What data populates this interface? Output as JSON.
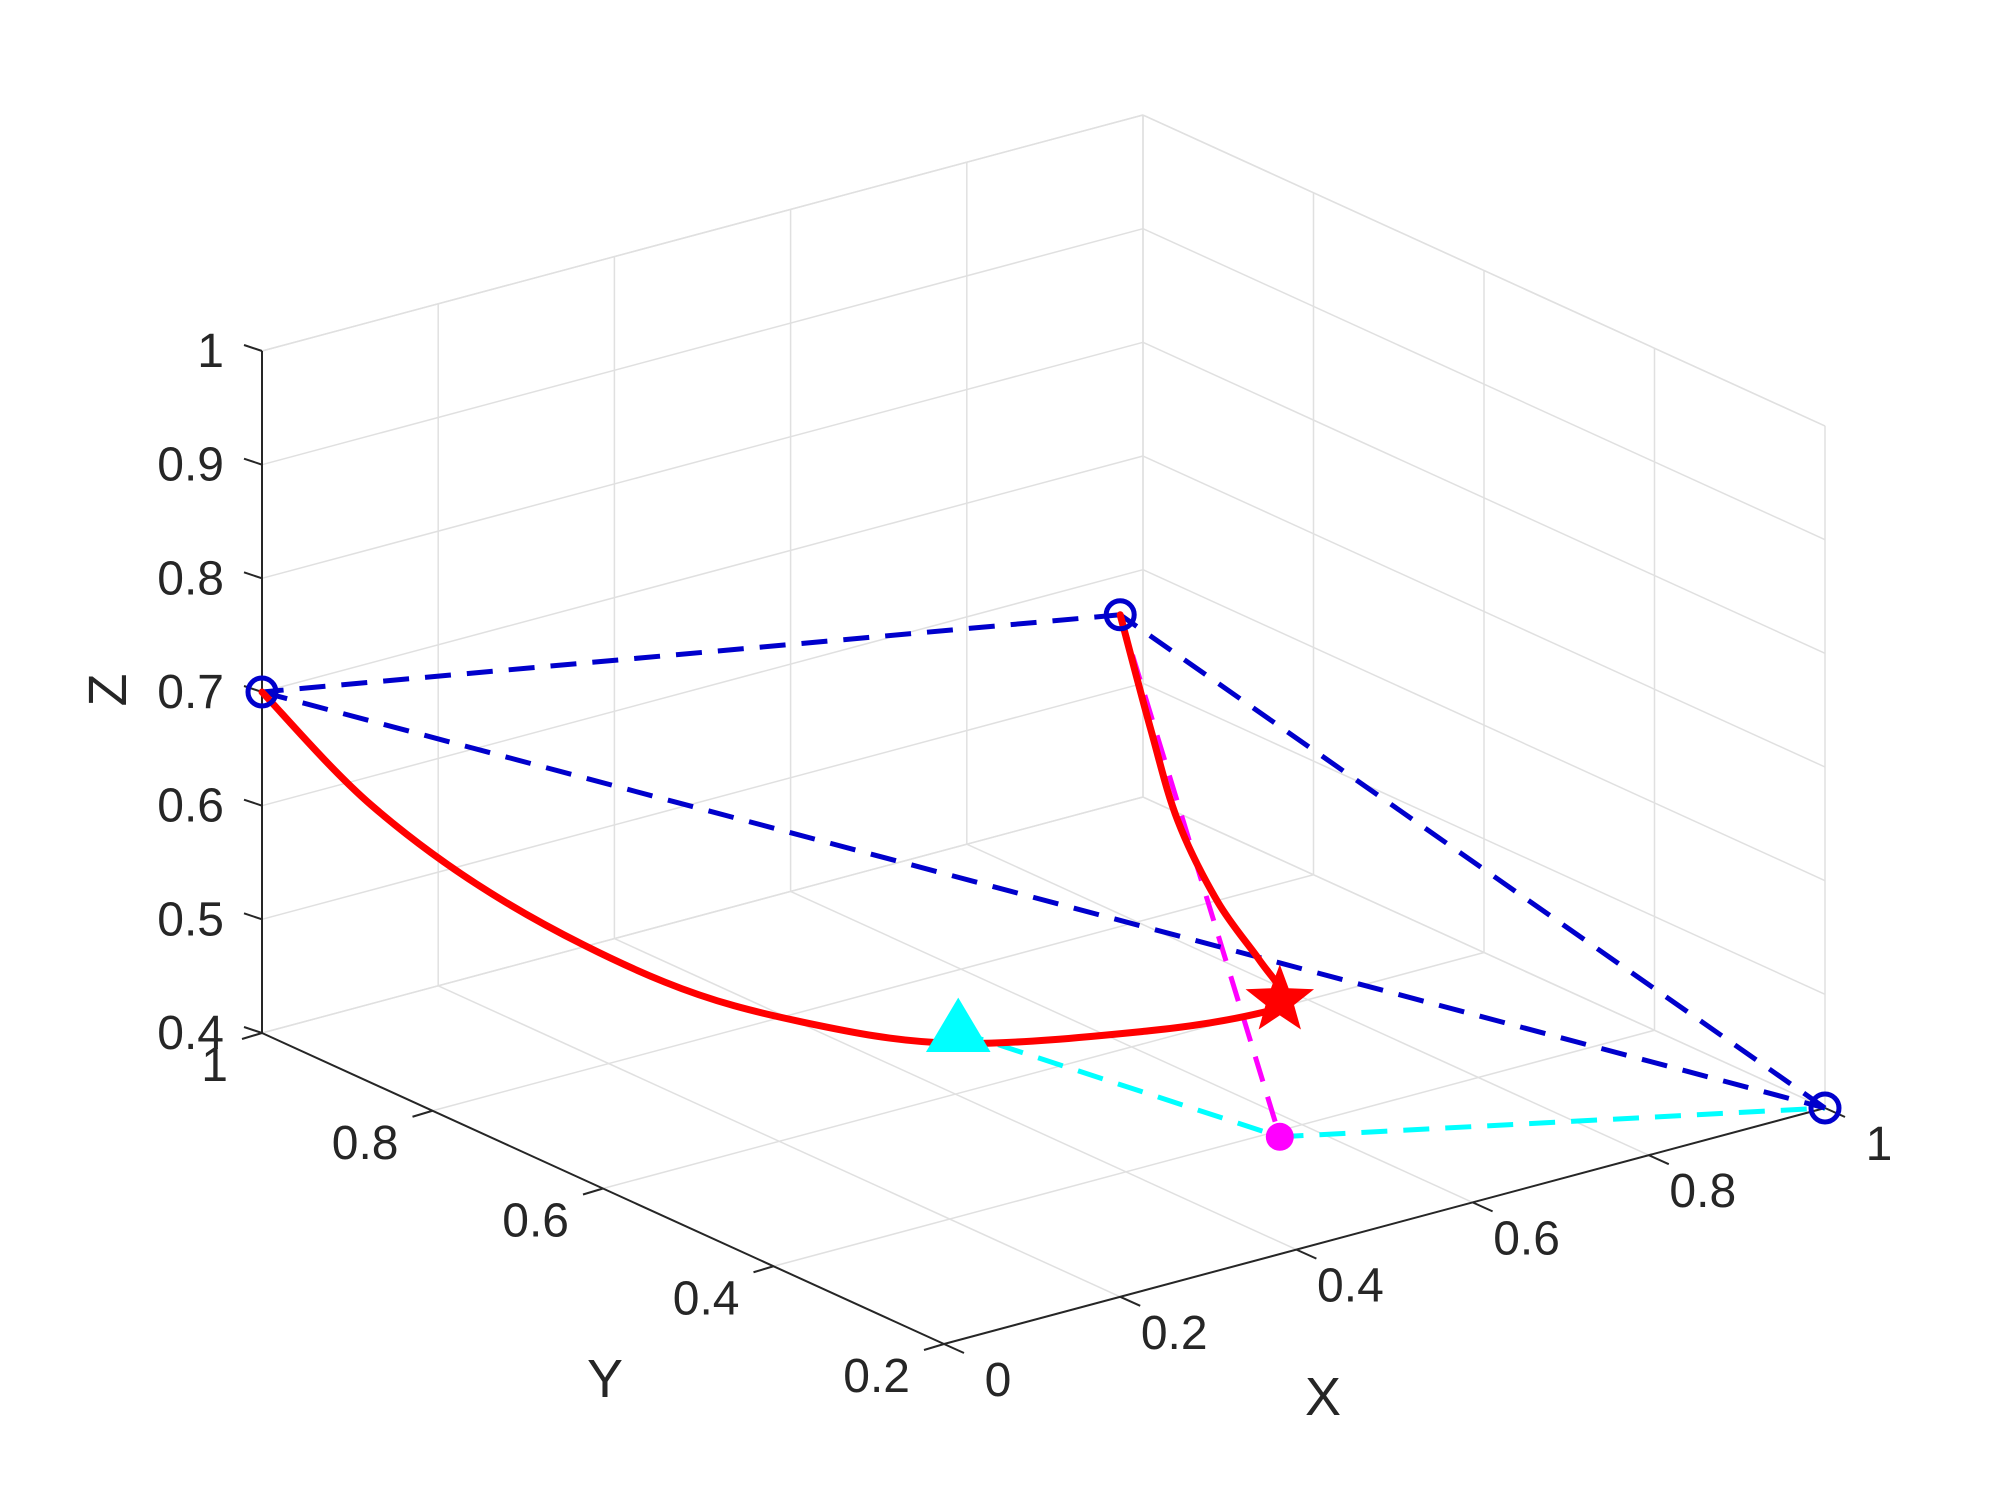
{
  "chart_data": {
    "type": "line",
    "projection": "3d",
    "title": "",
    "xlabel": "X",
    "ylabel": "Y",
    "zlabel": "Z",
    "xlim": [
      0,
      1
    ],
    "ylim": [
      0.2,
      1
    ],
    "zlim": [
      0.4,
      1
    ],
    "x_ticks": [
      0,
      0.2,
      0.4,
      0.6,
      0.8,
      1
    ],
    "x_tick_labels": [
      "0",
      "0.2",
      "0.4",
      "0.6",
      "0.8",
      "1"
    ],
    "y_ticks": [
      0.2,
      0.4,
      0.6,
      0.8,
      1
    ],
    "y_tick_labels": [
      "0.2",
      "0.4",
      "0.6",
      "0.8",
      "1"
    ],
    "z_ticks": [
      0.4,
      0.5,
      0.6,
      0.7,
      0.8,
      0.9,
      1
    ],
    "z_tick_labels": [
      "0.4",
      "0.5",
      "0.6",
      "0.7",
      "0.8",
      "0.9",
      "1"
    ],
    "grid": true,
    "legend": "none",
    "colors": {
      "curve": "#ff0000",
      "triangle_edges": "#0000cc",
      "vertex_markers": "#0000cc",
      "projection_line": "#ff00ff",
      "base_line": "#00ffff",
      "grid": "#e0e0e0",
      "axis": "#262626"
    },
    "vertices": [
      {
        "x": 0,
        "y": 1,
        "z": 0.7
      },
      {
        "x": 1,
        "y": 0.2,
        "z": 0.4
      },
      {
        "x": 0.2,
        "y": 0.2,
        "z": 1
      }
    ],
    "edges": [
      [
        0,
        1
      ],
      [
        1,
        2
      ],
      [
        2,
        0
      ]
    ],
    "curve": [
      {
        "x": 0.0,
        "y": 1.0,
        "z": 0.7
      },
      {
        "x": 0.063,
        "y": 0.937,
        "z": 0.609
      },
      {
        "x": 0.146,
        "y": 0.866,
        "z": 0.531
      },
      {
        "x": 0.252,
        "y": 0.788,
        "z": 0.465
      },
      {
        "x": 0.345,
        "y": 0.722,
        "z": 0.433
      },
      {
        "x": 0.44,
        "y": 0.642,
        "z": 0.422
      },
      {
        "x": 0.555,
        "y": 0.534,
        "z": 0.446
      },
      {
        "x": 0.578,
        "y": 0.424,
        "z": 0.495
      },
      {
        "x": 0.563,
        "y": 0.382,
        "z": 0.525
      },
      {
        "x": 0.48,
        "y": 0.326,
        "z": 0.595
      },
      {
        "x": 0.39,
        "y": 0.282,
        "z": 0.68
      },
      {
        "x": 0.31,
        "y": 0.246,
        "z": 0.78
      },
      {
        "x": 0.256,
        "y": 0.222,
        "z": 0.88
      },
      {
        "x": 0.2,
        "y": 0.2,
        "z": 1.0
      }
    ],
    "star_point": {
      "x": 0.565,
      "y": 0.39,
      "z": 0.52
    },
    "projected_point": {
      "x": 0.565,
      "y": 0.39,
      "z": 0.4
    },
    "triangle_point": {
      "x": 0.5,
      "y": 0.7,
      "z": 0.4
    },
    "projection_line": [
      {
        "x": 0.2,
        "y": 0.2,
        "z": 1.0
      },
      {
        "x": 0.565,
        "y": 0.39,
        "z": 0.4
      }
    ],
    "base_line": [
      {
        "x": 0.5,
        "y": 0.7,
        "z": 0.4
      },
      {
        "x": 0.565,
        "y": 0.39,
        "z": 0.4
      },
      {
        "x": 1.0,
        "y": 0.2,
        "z": 0.4
      }
    ]
  }
}
